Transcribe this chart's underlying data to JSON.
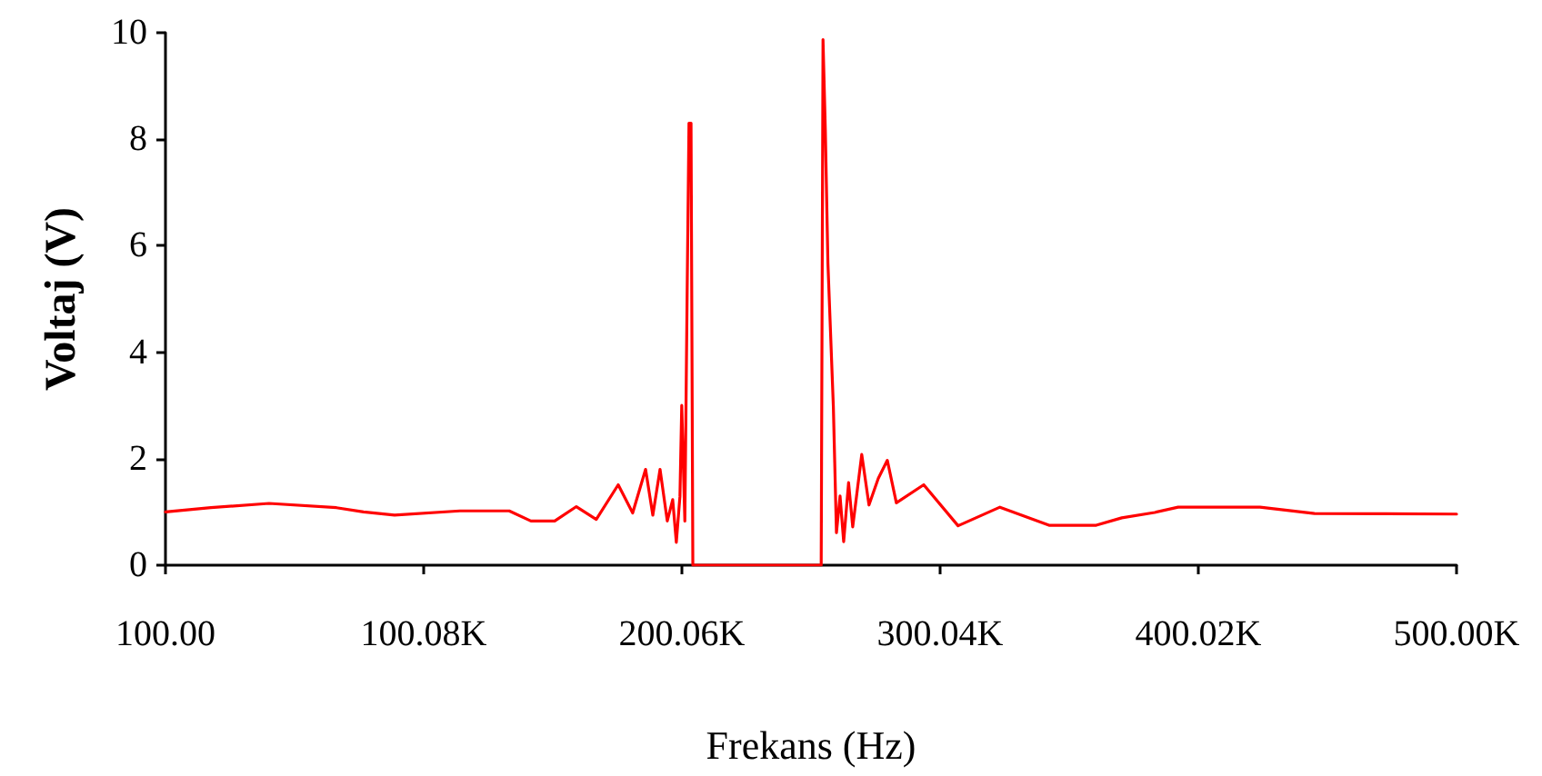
{
  "chart_data": {
    "type": "line",
    "xlabel": "Frekans (Hz)",
    "ylabel": "Voltaj (V)",
    "xlim": [
      100,
      500000
    ],
    "ylim": [
      0,
      10
    ],
    "xticks": [
      {
        "value": 100,
        "label": "100.00"
      },
      {
        "value": 100080,
        "label": "100.08K"
      },
      {
        "value": 200060,
        "label": "200.06K"
      },
      {
        "value": 300040,
        "label": "300.04K"
      },
      {
        "value": 400020,
        "label": "400.02K"
      },
      {
        "value": 500000,
        "label": "500.00K"
      }
    ],
    "yticks": [
      0,
      2,
      4,
      6,
      8,
      10
    ],
    "grid": false,
    "marker": "none",
    "line_style": "solid",
    "series": [
      {
        "color": "#ff0000",
        "x": [
          100,
          17700,
          40200,
          66300,
          76800,
          88800,
          114100,
          133200,
          141600,
          150800,
          159200,
          166900,
          175400,
          181000,
          186000,
          188800,
          191600,
          194400,
          196500,
          197900,
          199300,
          200000,
          201200,
          202100,
          202800,
          203600,
          204300,
          254000,
          254700,
          255600,
          256600,
          258700,
          259900,
          261300,
          262700,
          264600,
          266200,
          269700,
          272500,
          276100,
          279600,
          283100,
          293700,
          307000,
          323200,
          342200,
          360500,
          370400,
          383100,
          392200,
          423900,
          445000,
          500000
        ],
        "values": [
          1.0,
          1.08,
          1.16,
          1.08,
          1.0,
          0.94,
          1.02,
          1.02,
          0.83,
          0.83,
          1.1,
          0.86,
          1.51,
          0.98,
          1.8,
          0.94,
          1.8,
          0.83,
          1.23,
          0.43,
          1.29,
          3.0,
          0.83,
          5.15,
          8.3,
          8.3,
          0,
          0,
          9.87,
          8.17,
          5.67,
          2.99,
          0.61,
          1.3,
          0.44,
          1.55,
          0.72,
          2.08,
          1.13,
          1.63,
          1.97,
          1.17,
          1.51,
          0.74,
          1.09,
          0.75,
          0.75,
          0.89,
          0.99,
          1.09,
          1.09,
          0.97,
          0.96
        ]
      }
    ]
  }
}
